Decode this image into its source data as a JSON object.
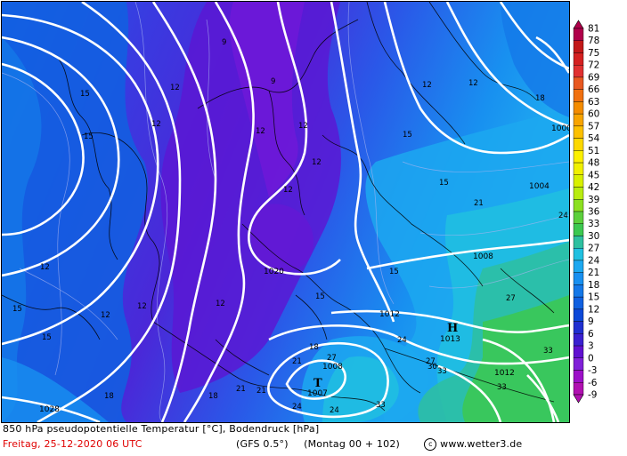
{
  "caption": {
    "line1": "850 hPa pseudopotentielle Temperatur [°C], Bodendruck [hPa]",
    "date": "Freitag, 25-12-2020  06 UTC",
    "model": "(GFS 0.5°)",
    "run": "(Montag 00 + 102)",
    "site": "www.wetter3.de"
  },
  "legend": {
    "labels": [
      "81",
      "78",
      "75",
      "72",
      "69",
      "66",
      "63",
      "60",
      "57",
      "54",
      "51",
      "48",
      "45",
      "42",
      "39",
      "36",
      "33",
      "30",
      "27",
      "24",
      "21",
      "18",
      "15",
      "12",
      "9",
      "6",
      "3",
      "0",
      "-3",
      "-6",
      "-9"
    ],
    "colors": [
      "#b0004a",
      "#c21818",
      "#d42020",
      "#e03030",
      "#e85820",
      "#f07010",
      "#f48c00",
      "#f8a400",
      "#fcc000",
      "#fcd800",
      "#fcf000",
      "#f0f000",
      "#d8f000",
      "#b8ec10",
      "#8ce020",
      "#5cd03c",
      "#3cc850",
      "#2ec0a0",
      "#20c0e0",
      "#1ca8f0",
      "#1890f0",
      "#1478e8",
      "#1060e0",
      "#0c48d8",
      "#2030d0",
      "#3a20d0",
      "#6010d0",
      "#8020d8",
      "#9c10c8",
      "#b010b0"
    ]
  },
  "map": {
    "isobar_labels": [
      "1028",
      "1020",
      "1012",
      "1008",
      "1008",
      "1004",
      "1000",
      "1012",
      "1007",
      "1013"
    ],
    "pressure_centers": [
      {
        "letter": "H",
        "value": "1013"
      },
      {
        "letter": "T",
        "value": "1007"
      }
    ],
    "theta_labels": [
      "9",
      "9",
      "12",
      "12",
      "12",
      "12",
      "12",
      "12",
      "12",
      "12",
      "12",
      "12",
      "12",
      "12",
      "15",
      "15",
      "15",
      "15",
      "15",
      "15",
      "15",
      "15",
      "18",
      "18",
      "18",
      "18",
      "21",
      "21",
      "21",
      "21",
      "24",
      "24",
      "24",
      "24",
      "27",
      "27",
      "27",
      "30",
      "33",
      "33",
      "33",
      "33"
    ]
  }
}
